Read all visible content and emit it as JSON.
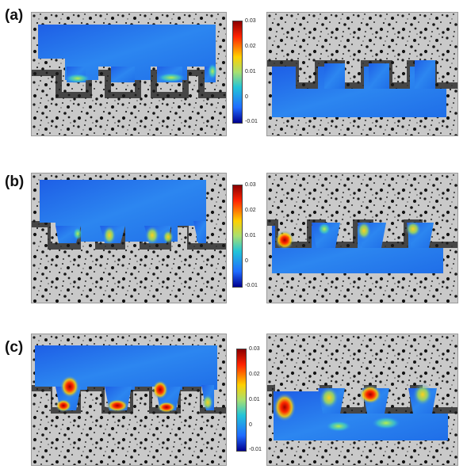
{
  "panels": [
    {
      "label": "(a)"
    },
    {
      "label": "(b)"
    },
    {
      "label": "(c)"
    }
  ],
  "colorbar": {
    "ticks": [
      "0.03",
      "0.02",
      "0.01",
      "0",
      "-0.01"
    ],
    "colors": [
      "#8b0000",
      "#ff3300",
      "#ffcc00",
      "#a8e070",
      "#22c4d8",
      "#1f6bff",
      "#000090"
    ]
  }
}
